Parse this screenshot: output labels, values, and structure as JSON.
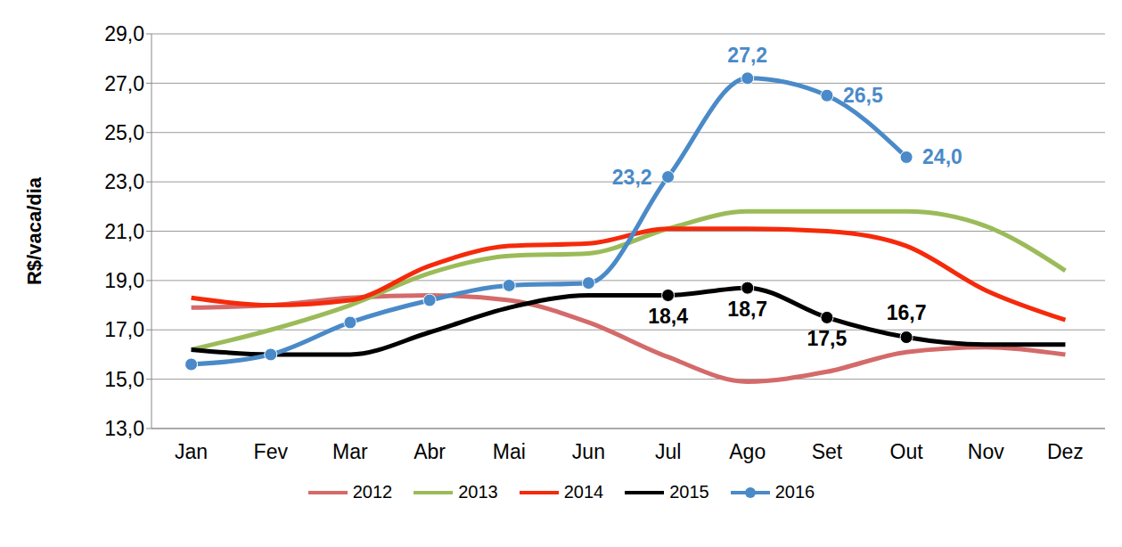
{
  "chart_data": {
    "type": "line",
    "y_label": "R$/vaca/dia",
    "categories": [
      "Jan",
      "Fev",
      "Mar",
      "Abr",
      "Mai",
      "Jun",
      "Jul",
      "Ago",
      "Set",
      "Out",
      "Nov",
      "Dez"
    ],
    "ylim": [
      13,
      29
    ],
    "yticks": [
      {
        "value": 13,
        "label": "13,0"
      },
      {
        "value": 15,
        "label": "15,0"
      },
      {
        "value": 17,
        "label": "17,0"
      },
      {
        "value": 19,
        "label": "19,0"
      },
      {
        "value": 21,
        "label": "21,0"
      },
      {
        "value": 23,
        "label": "23,0"
      },
      {
        "value": 25,
        "label": "25,0"
      },
      {
        "value": 27,
        "label": "27,0"
      },
      {
        "value": 29,
        "label": "29,0"
      }
    ],
    "grid": true,
    "legend": "bottom",
    "series": [
      {
        "name": "2012",
        "color": "#d46a6a",
        "values": [
          17.9,
          18.0,
          18.3,
          18.4,
          18.2,
          17.3,
          15.9,
          14.9,
          15.3,
          16.1,
          16.3,
          16.0
        ]
      },
      {
        "name": "2013",
        "color": "#9bbb59",
        "values": [
          16.2,
          17.0,
          18.0,
          19.3,
          20.0,
          20.1,
          21.1,
          21.8,
          21.8,
          21.8,
          21.2,
          19.4
        ]
      },
      {
        "name": "2014",
        "color": "#f52a0a",
        "values": [
          18.3,
          18.0,
          18.2,
          19.6,
          20.4,
          20.5,
          21.1,
          21.1,
          21.0,
          20.4,
          18.6,
          17.4
        ]
      },
      {
        "name": "2015",
        "color": "#000000",
        "values": [
          16.2,
          16.0,
          16.0,
          16.9,
          17.9,
          18.4,
          18.4,
          18.7,
          17.5,
          16.7,
          16.4,
          16.4
        ],
        "data_labels": true,
        "value_labels": [
          null,
          null,
          null,
          null,
          null,
          null,
          "18,4",
          "18,7",
          "17,5",
          "16,7",
          null,
          null
        ]
      },
      {
        "name": "2016",
        "color": "#4a8ac8",
        "marker": "circle",
        "values": [
          15.6,
          16.0,
          17.3,
          18.2,
          18.8,
          18.9,
          23.2,
          27.2,
          26.5,
          24.0,
          null,
          null
        ],
        "data_labels": true,
        "value_labels": [
          null,
          null,
          null,
          null,
          null,
          null,
          "23,2",
          "27,2",
          "26,5",
          "24,0",
          null,
          null
        ]
      }
    ]
  }
}
